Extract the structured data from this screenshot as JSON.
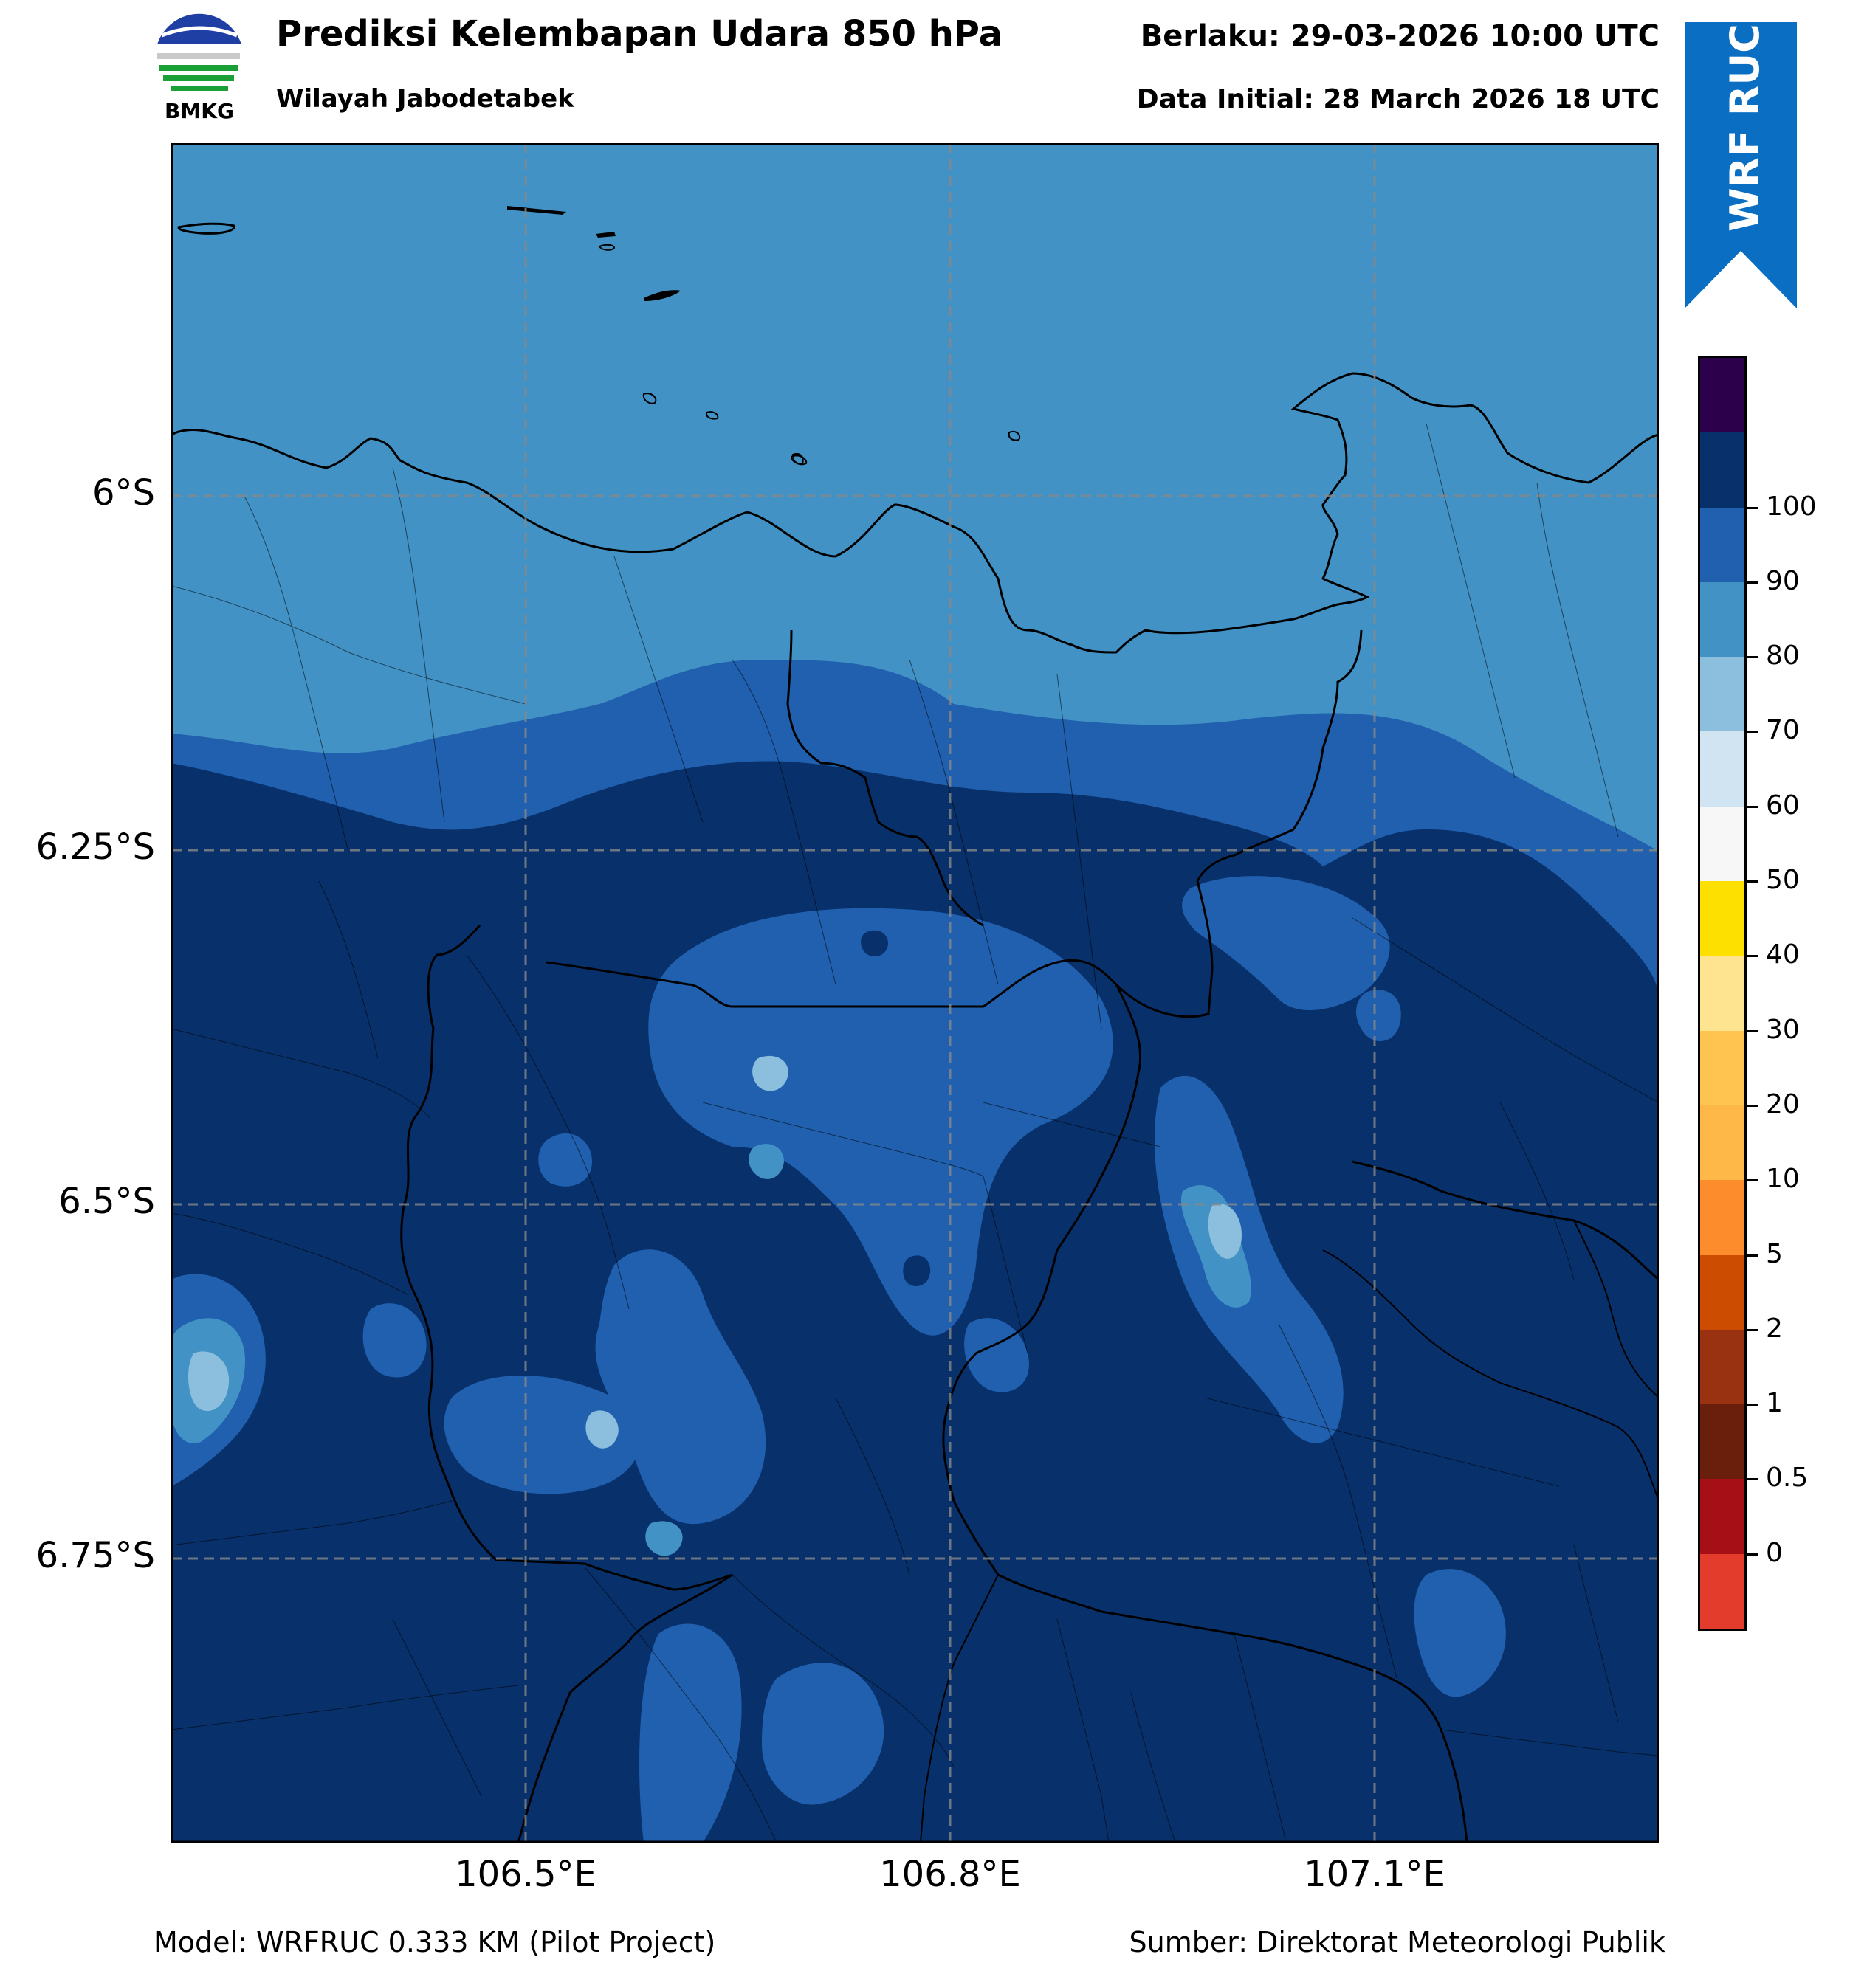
{
  "header": {
    "title": "Prediksi Kelembapan Udara 850 hPa",
    "subtitle": "Wilayah Jabodetabek",
    "valid_time": "Berlaku: 29-03-2026 10:00 UTC",
    "initial_time": "Data Initial: 28 March 2026 18 UTC",
    "logo_text": "BMKG",
    "ribbon_text": "WRF RUC"
  },
  "map": {
    "lat_labels": [
      "6°S",
      "6.25°S",
      "6.5°S",
      "6.75°S"
    ],
    "lon_labels": [
      "106.5°E",
      "106.8°E",
      "107.1°E"
    ],
    "colors": {
      "band_70_80": "#4292c6",
      "band_80_90": "#2060ae",
      "band_90_100": "#08306b",
      "band_60_70": "#8cbfde",
      "grid": "#888888",
      "coast": "#000000"
    }
  },
  "colorbar": {
    "labels": [
      "0",
      "0.5",
      "1",
      "2",
      "5",
      "10",
      "20",
      "30",
      "40",
      "50",
      "60",
      "70",
      "80",
      "90",
      "100"
    ],
    "colors": [
      "#e33c2d",
      "#a50f15",
      "#6a1f0c",
      "#993210",
      "#cc4c02",
      "#fd8d2c",
      "#fdb847",
      "#fec44f",
      "#fee391",
      "#fee000",
      "#f7f7f7",
      "#d1e4f1",
      "#8cbfde",
      "#4292c6",
      "#2060ae",
      "#08306b",
      "#2d004b"
    ]
  },
  "footer": {
    "model": "Model: WRFRUC 0.333 KM (Pilot Project)",
    "source": "Sumber: Direktorat Meteorologi Publik"
  }
}
